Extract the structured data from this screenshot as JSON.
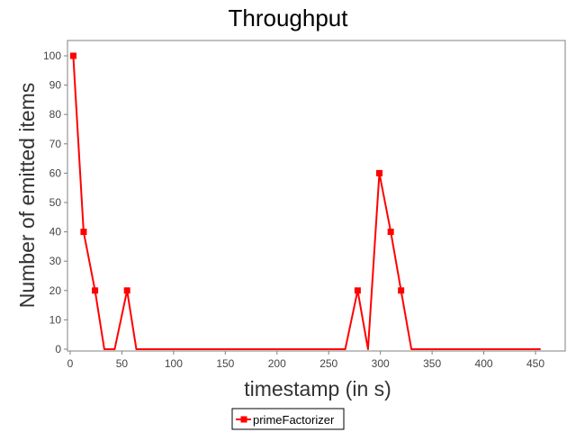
{
  "chart_data": {
    "type": "line",
    "title": "Throughput",
    "xlabel": "timestamp (in s)",
    "ylabel": "Number of emitted items",
    "xlim": [
      0,
      480
    ],
    "ylim": [
      0,
      105
    ],
    "xticks": [
      0,
      50,
      100,
      150,
      200,
      250,
      300,
      350,
      400,
      450
    ],
    "yticks": [
      0,
      10,
      20,
      30,
      40,
      50,
      60,
      70,
      80,
      90,
      100
    ],
    "grid": false,
    "legend_position": "bottom-center",
    "series": [
      {
        "name": "primeFactorizer",
        "color": "#ff0000",
        "marker": "square",
        "points": [
          [
            3,
            100
          ],
          [
            13,
            40
          ],
          [
            24,
            20
          ],
          [
            33,
            0
          ],
          [
            43,
            0
          ],
          [
            55,
            20
          ],
          [
            64,
            0
          ],
          [
            266,
            0
          ],
          [
            278,
            20
          ],
          [
            288,
            0
          ],
          [
            299,
            60
          ],
          [
            310,
            40
          ],
          [
            320,
            20
          ],
          [
            330,
            0
          ],
          [
            455,
            0
          ]
        ],
        "marked_points": [
          [
            3,
            100
          ],
          [
            13,
            40
          ],
          [
            24,
            20
          ],
          [
            55,
            20
          ],
          [
            278,
            20
          ],
          [
            299,
            60
          ],
          [
            310,
            40
          ],
          [
            320,
            20
          ]
        ]
      }
    ]
  }
}
